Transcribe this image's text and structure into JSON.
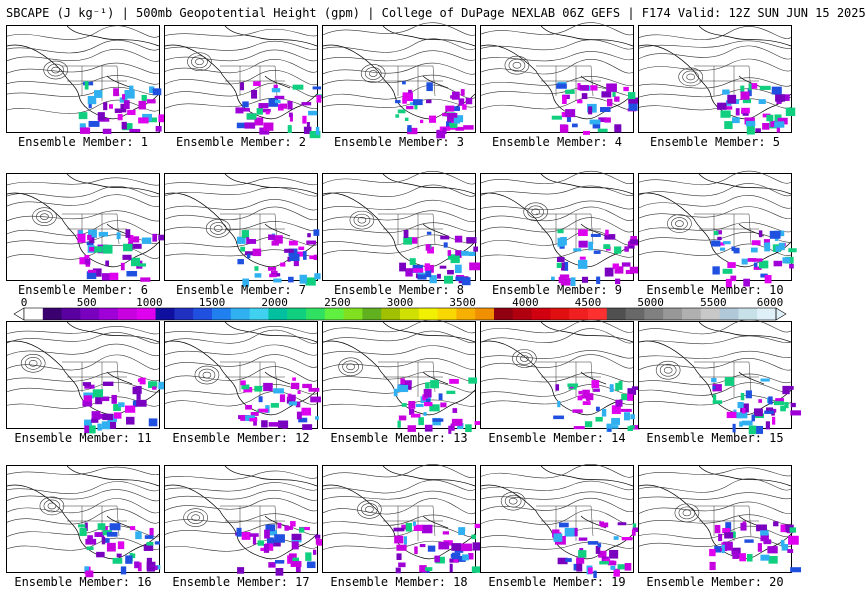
{
  "title": "SBCAPE (J kg⁻¹) | 500mb Geopotential Height (gpm) | College of DuPage NEXLAB 06Z GEFS | F174 Valid: 12Z SUN JUN 15 2025",
  "members": [
    {
      "label": "Ensemble Member: 1"
    },
    {
      "label": "Ensemble Member: 2"
    },
    {
      "label": "Ensemble Member: 3"
    },
    {
      "label": "Ensemble Member: 4"
    },
    {
      "label": "Ensemble Member: 5"
    },
    {
      "label": "Ensemble Member: 6"
    },
    {
      "label": "Ensemble Member: 7"
    },
    {
      "label": "Ensemble Member: 8"
    },
    {
      "label": "Ensemble Member: 9"
    },
    {
      "label": "Ensemble Member: 10"
    },
    {
      "label": "Ensemble Member: 11"
    },
    {
      "label": "Ensemble Member: 12"
    },
    {
      "label": "Ensemble Member: 13"
    },
    {
      "label": "Ensemble Member: 14"
    },
    {
      "label": "Ensemble Member: 15"
    },
    {
      "label": "Ensemble Member: 16"
    },
    {
      "label": "Ensemble Member: 17"
    },
    {
      "label": "Ensemble Member: 18"
    },
    {
      "label": "Ensemble Member: 19"
    },
    {
      "label": "Ensemble Member: 20"
    }
  ],
  "colorbar": {
    "labels": [
      "0",
      "500",
      "1000",
      "1500",
      "2000",
      "2500",
      "3000",
      "3500",
      "4000",
      "4500",
      "5000",
      "5500",
      "6000"
    ],
    "colors": [
      "#ffffff",
      "#3a0070",
      "#5a00a0",
      "#7a00c0",
      "#a000d8",
      "#c800e0",
      "#e000f0",
      "#1010a0",
      "#2030c0",
      "#2050e0",
      "#2080f0",
      "#30b0f0",
      "#40d0f0",
      "#00c0a0",
      "#10d080",
      "#30e060",
      "#60f040",
      "#80e020",
      "#60b020",
      "#a0c000",
      "#d0e000",
      "#f0f000",
      "#f8d800",
      "#f8b000",
      "#f09000",
      "#900010",
      "#b00010",
      "#d00010",
      "#e01010",
      "#f02020",
      "#ff3030",
      "#505050",
      "#686868",
      "#808080",
      "#989898",
      "#b0b0b0",
      "#c8c8c8",
      "#b0c8d8",
      "#c8e0e8",
      "#e0f0f8"
    ]
  }
}
